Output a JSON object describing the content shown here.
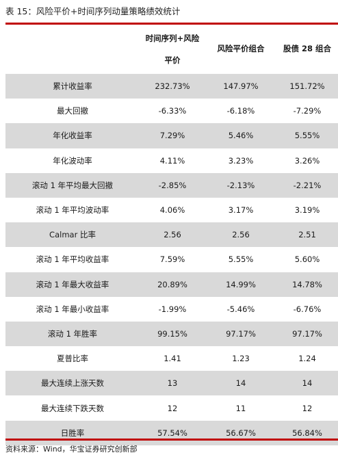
{
  "caption": "表 15：风险平价+时间序列动量策略绩效统计",
  "header": {
    "col1_line1": "时间序列+风险",
    "col1_line2": "平价",
    "col2": "风险平价组合",
    "col3": "股债 28 组合"
  },
  "rows": [
    {
      "label": "累计收益率",
      "v1": "232.73%",
      "v2": "147.97%",
      "v3": "151.72%"
    },
    {
      "label": "最大回撤",
      "v1": "-6.33%",
      "v2": "-6.18%",
      "v3": "-7.29%"
    },
    {
      "label": "年化收益率",
      "v1": "7.29%",
      "v2": "5.46%",
      "v3": "5.55%"
    },
    {
      "label": "年化波动率",
      "v1": "4.11%",
      "v2": "3.23%",
      "v3": "3.26%"
    },
    {
      "label": "滚动 1 年平均最大回撤",
      "v1": "-2.85%",
      "v2": "-2.13%",
      "v3": "-2.21%"
    },
    {
      "label": "滚动 1 年平均波动率",
      "v1": "4.06%",
      "v2": "3.17%",
      "v3": "3.19%"
    },
    {
      "label": "Calmar 比率",
      "v1": "2.56",
      "v2": "2.56",
      "v3": "2.51"
    },
    {
      "label": "滚动 1 年平均收益率",
      "v1": "7.59%",
      "v2": "5.55%",
      "v3": "5.60%"
    },
    {
      "label": "滚动 1 年最大收益率",
      "v1": "20.89%",
      "v2": "14.99%",
      "v3": "14.78%"
    },
    {
      "label": "滚动 1 年最小收益率",
      "v1": "-1.99%",
      "v2": "-5.46%",
      "v3": "-6.76%"
    },
    {
      "label": "滚动 1 年胜率",
      "v1": "99.15%",
      "v2": "97.17%",
      "v3": "97.17%"
    },
    {
      "label": "夏普比率",
      "v1": "1.41",
      "v2": "1.23",
      "v3": "1.24"
    },
    {
      "label": "最大连续上涨天数",
      "v1": "13",
      "v2": "14",
      "v3": "14"
    },
    {
      "label": "最大连续下跌天数",
      "v1": "12",
      "v2": "11",
      "v3": "12"
    },
    {
      "label": "日胜率",
      "v1": "57.54%",
      "v2": "56.67%",
      "v3": "56.84%"
    }
  ],
  "source": "资料来源：Wind，华宝证券研究创新部",
  "colors": {
    "rule": "#c00000",
    "shade": "#d9d9d9"
  }
}
